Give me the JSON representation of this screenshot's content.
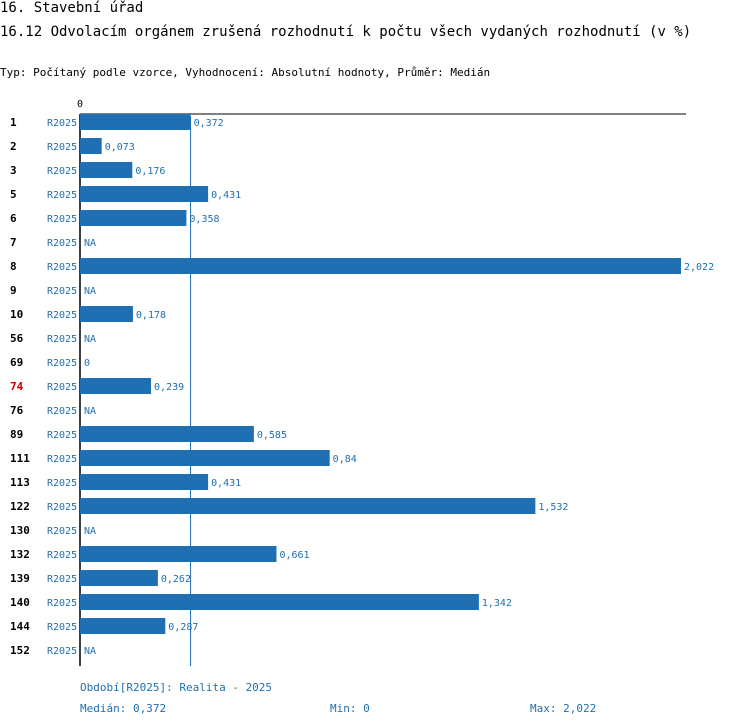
{
  "header": {
    "section_title": "16. Stavební úřad",
    "chart_title": "16.12 Odvolacím orgánem zrušená rozhodnutí k počtu všech vydaných rozhodnutí (v %)",
    "meta_line": "Typ: Počítaný podle vzorce, Vyhodnocení: Absolutní hodnoty, Průměr: Medián"
  },
  "colors": {
    "bar": "#1f6fb2",
    "label": "#1f6fb2",
    "highlight": "#cc0000",
    "axis": "#000000"
  },
  "chart_data": {
    "type": "bar",
    "orientation": "horizontal",
    "axis_zero_label": "0",
    "xlim": [
      0,
      2.022
    ],
    "series_label": "R2025",
    "highlight_category": "74",
    "categories": [
      "1",
      "2",
      "3",
      "5",
      "6",
      "7",
      "8",
      "9",
      "10",
      "56",
      "69",
      "74",
      "76",
      "89",
      "111",
      "113",
      "122",
      "130",
      "132",
      "139",
      "140",
      "144",
      "152"
    ],
    "values": [
      0.372,
      0.073,
      0.176,
      0.431,
      0.358,
      null,
      2.022,
      null,
      0.178,
      null,
      0,
      0.239,
      null,
      0.585,
      0.84,
      0.431,
      1.532,
      null,
      0.661,
      0.262,
      1.342,
      0.287,
      null
    ],
    "value_labels": [
      "0,372",
      "0,073",
      "0,176",
      "0,431",
      "0,358",
      "NA",
      "2,022",
      "NA",
      "0,178",
      "NA",
      "0",
      "0,239",
      "NA",
      "0,585",
      "0,84",
      "0,431",
      "1,532",
      "NA",
      "0,661",
      "0,262",
      "1,342",
      "0,287",
      "NA"
    ],
    "median": 0.372,
    "min": 0,
    "max": 2.022
  },
  "footer": {
    "period": "Období[R2025]: Realita - 2025",
    "median_text": "Medián: 0,372",
    "min_text": "Min: 0",
    "max_text": "Max: 2,022"
  }
}
